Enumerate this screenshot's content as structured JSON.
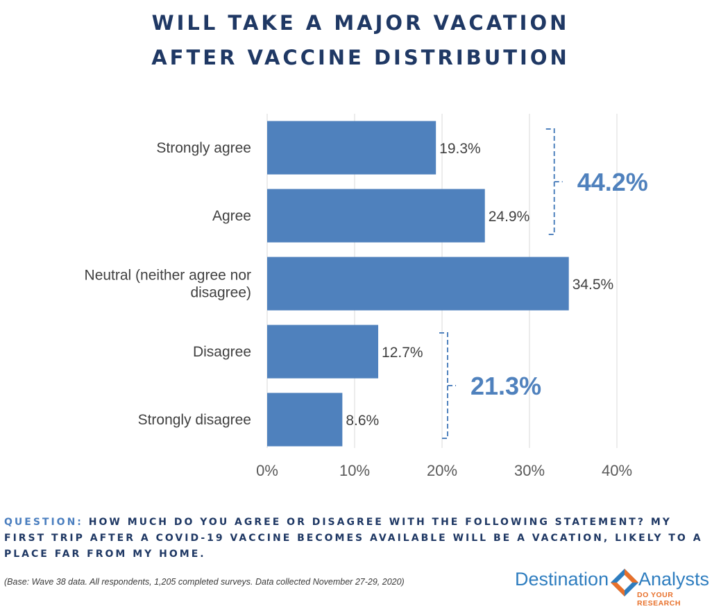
{
  "header": {
    "title_line1": "WILL TAKE A MAJOR VACATION",
    "title_line2": "AFTER VACCINE DISTRIBUTION"
  },
  "chart_data": {
    "type": "bar",
    "orientation": "horizontal",
    "categories": [
      [
        "Strongly agree"
      ],
      [
        "Agree"
      ],
      [
        "Neutral (neither agree nor",
        "disagree)"
      ],
      [
        "Disagree"
      ],
      [
        "Strongly disagree"
      ]
    ],
    "values": [
      19.3,
      24.9,
      34.5,
      12.7,
      8.6
    ],
    "data_labels": [
      "19.3%",
      "24.9%",
      "34.5%",
      "12.7%",
      "8.6%"
    ],
    "xlim": [
      0,
      40
    ],
    "x_ticks": [
      0,
      10,
      20,
      30,
      40
    ],
    "x_tick_labels": [
      "0%",
      "10%",
      "20%",
      "30%",
      "40%"
    ],
    "grid": "vertical",
    "bar_color": "#4f81bd",
    "annotations": [
      {
        "label": "44.2%",
        "from_category": 0,
        "to_category": 1
      },
      {
        "label": "21.3%",
        "from_category": 3,
        "to_category": 4
      }
    ]
  },
  "question": {
    "label": "QUESTION:",
    "text": "HOW MUCH DO YOU AGREE OR DISAGREE WITH THE FOLLOWING STATEMENT? MY FIRST TRIP AFTER A COVID-19 VACCINE BECOMES AVAILABLE WILL BE A VACATION, LIKELY TO A PLACE FAR FROM MY HOME."
  },
  "base_note": "(Base: Wave 38 data. All respondents, 1,205 completed surveys. Data collected November 27-29, 2020)",
  "logo": {
    "name_left": "Destination",
    "name_right": "Analysts",
    "tagline": "DO YOUR RESEARCH",
    "icon": "diamond-logo-icon",
    "colors": {
      "blue": "#2e7dbf",
      "orange": "#e8702a"
    }
  }
}
